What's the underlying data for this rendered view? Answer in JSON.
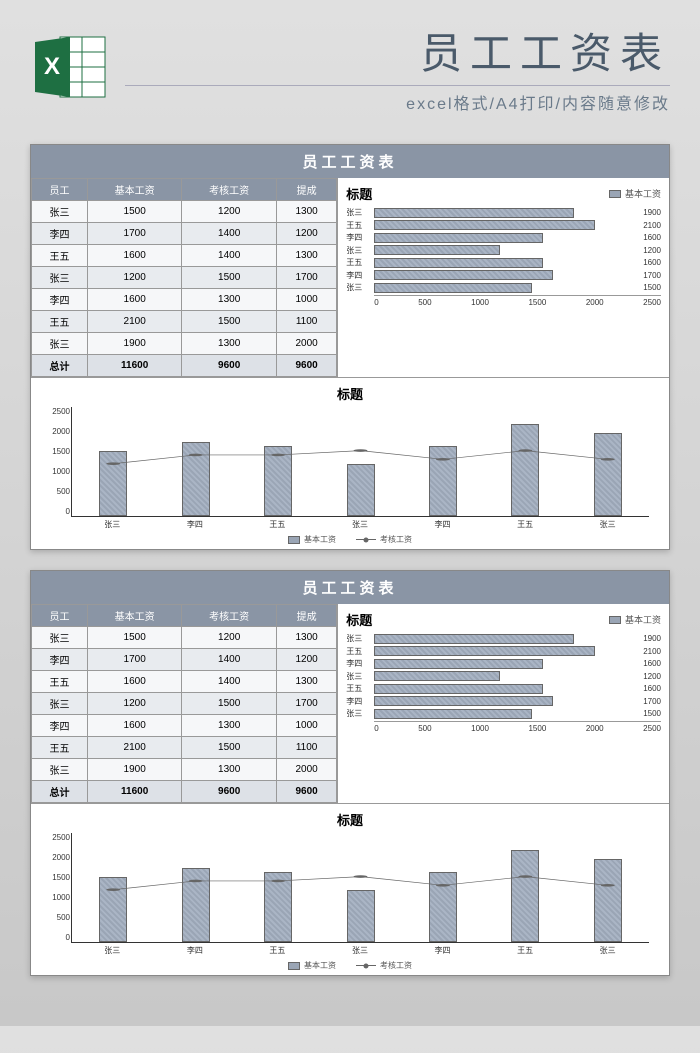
{
  "header": {
    "main_title": "员工工资表",
    "sub_title": "excel格式/A4打印/内容随意修改"
  },
  "sheet_title": "员工工资表",
  "table": {
    "columns": [
      "员工",
      "基本工资",
      "考核工资",
      "提成"
    ],
    "rows": [
      [
        "张三",
        "1500",
        "1200",
        "1300"
      ],
      [
        "李四",
        "1700",
        "1400",
        "1200"
      ],
      [
        "王五",
        "1600",
        "1400",
        "1300"
      ],
      [
        "张三",
        "1200",
        "1500",
        "1700"
      ],
      [
        "李四",
        "1600",
        "1300",
        "1000"
      ],
      [
        "王五",
        "2100",
        "1500",
        "1100"
      ],
      [
        "张三",
        "1900",
        "1300",
        "2000"
      ]
    ],
    "total": [
      "总计",
      "11600",
      "9600",
      "9600"
    ]
  },
  "hbar": {
    "title": "标题",
    "legend": "基本工资",
    "max": 2500,
    "ticks": [
      "0",
      "500",
      "1000",
      "1500",
      "2000",
      "2500"
    ],
    "bars": [
      {
        "label": "张三",
        "value": 1900
      },
      {
        "label": "王五",
        "value": 2100
      },
      {
        "label": "李四",
        "value": 1600
      },
      {
        "label": "张三",
        "value": 1200
      },
      {
        "label": "王五",
        "value": 1600
      },
      {
        "label": "李四",
        "value": 1700
      },
      {
        "label": "张三",
        "value": 1500
      }
    ]
  },
  "combo": {
    "title": "标题",
    "ymax": 2500,
    "yticks": [
      "0",
      "500",
      "1000",
      "1500",
      "2000",
      "2500"
    ],
    "categories": [
      "张三",
      "李四",
      "王五",
      "张三",
      "李四",
      "王五",
      "张三"
    ],
    "bars": [
      1500,
      1700,
      1600,
      1200,
      1600,
      2100,
      1900
    ],
    "line": [
      1200,
      1400,
      1400,
      1500,
      1300,
      1500,
      1300
    ],
    "legend_bar": "基本工资",
    "legend_line": "考核工资"
  },
  "colors": {
    "bar_fill": "#9aa5b5",
    "header_bg": "#8a95a5",
    "line": "#666666"
  }
}
